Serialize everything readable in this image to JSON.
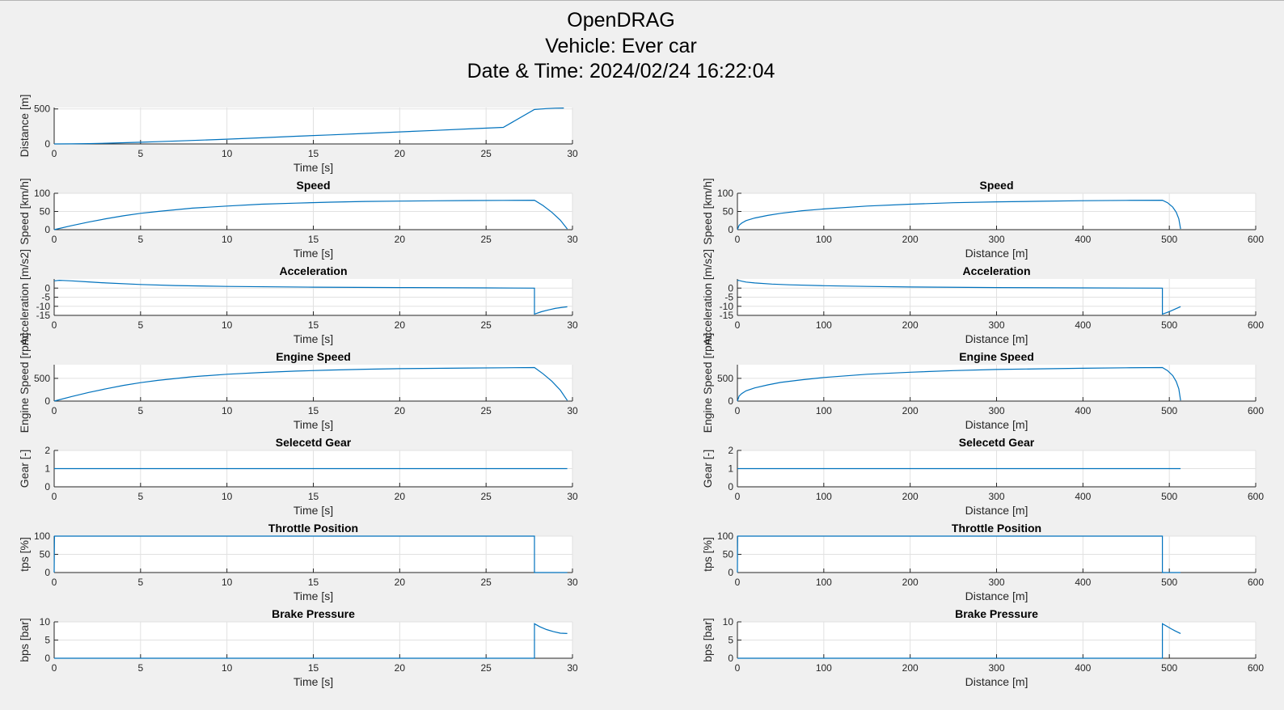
{
  "figure": {
    "title_lines": [
      "OpenDRAG",
      "Vehicle: Ever car",
      "Date & Time: 2024/02/24 16:22:04"
    ]
  },
  "colors": {
    "background": "#f0f0f0",
    "axes_background": "#ffffff",
    "line": "#0072bd",
    "grid": "#e1e1e1",
    "axis": "#262626"
  },
  "chart_data": [
    {
      "id": "distance-time",
      "type": "line",
      "title": "",
      "xlabel": "Time [s]",
      "ylabel": "Distance [m]",
      "xlim": [
        0,
        30
      ],
      "ylim": [
        0,
        520
      ],
      "xticks": [
        0,
        5,
        10,
        15,
        20,
        25,
        30
      ],
      "yticks": [
        0,
        500
      ],
      "grid": true,
      "series": [
        {
          "x": [
            0,
            1,
            2,
            3,
            4,
            5,
            6,
            8,
            10,
            12,
            14,
            16,
            18,
            20,
            22,
            24,
            26,
            27.8,
            28.5,
            29,
            29.5
          ],
          "y": [
            0,
            1.5,
            5,
            10,
            17,
            24,
            32,
            50,
            68,
            88,
            110,
            130,
            150,
            172,
            193,
            215,
            237,
            492,
            505,
            511,
            513
          ]
        }
      ]
    },
    {
      "id": "speed-time",
      "type": "line",
      "title": "Speed",
      "xlabel": "Time [s]",
      "ylabel": "Speed [km/h]",
      "xlim": [
        0,
        30
      ],
      "ylim": [
        0,
        100
      ],
      "xticks": [
        0,
        5,
        10,
        15,
        20,
        25,
        30
      ],
      "yticks": [
        0,
        50,
        100
      ],
      "grid": true,
      "series": [
        {
          "x": [
            0,
            1,
            2,
            3,
            4,
            5,
            6,
            8,
            10,
            12,
            14,
            16,
            18,
            20,
            22,
            24,
            26,
            27.8,
            28.3,
            28.8,
            29.3,
            29.7
          ],
          "y": [
            0,
            11,
            21,
            30,
            38,
            45,
            50,
            59,
            65,
            70,
            73,
            75.5,
            77.5,
            78.5,
            79.3,
            80,
            80.5,
            81,
            66,
            48,
            26,
            2
          ]
        }
      ]
    },
    {
      "id": "speed-distance",
      "type": "line",
      "title": "Speed",
      "xlabel": "Distance [m]",
      "ylabel": "Speed [km/h]",
      "xlim": [
        0,
        600
      ],
      "ylim": [
        0,
        100
      ],
      "xticks": [
        0,
        100,
        200,
        300,
        400,
        500,
        600
      ],
      "yticks": [
        0,
        50,
        100
      ],
      "grid": true,
      "series": [
        {
          "x": [
            0,
            2,
            5,
            10,
            20,
            35,
            50,
            75,
            100,
            150,
            200,
            250,
            300,
            350,
            400,
            450,
            492,
            498,
            504,
            508,
            511,
            513
          ],
          "y": [
            0,
            12,
            18,
            25,
            32,
            39,
            45,
            52,
            57,
            65,
            70,
            74,
            76.5,
            78,
            79.5,
            80.5,
            81,
            74,
            62,
            48,
            30,
            2
          ]
        }
      ]
    },
    {
      "id": "accel-time",
      "type": "line",
      "title": "Acceleration",
      "xlabel": "Time [s]",
      "ylabel": "Acceleration [m/s2]",
      "xlim": [
        0,
        30
      ],
      "ylim": [
        -15,
        5
      ],
      "xticks": [
        0,
        5,
        10,
        15,
        20,
        25,
        30
      ],
      "yticks": [
        -15,
        -10,
        -5,
        0
      ],
      "grid": true,
      "series": [
        {
          "x": [
            0,
            0.3,
            0.5,
            1,
            2,
            3,
            5,
            7,
            10,
            15,
            20,
            25,
            27.8,
            27.8,
            28.2,
            28.6,
            29,
            29.4,
            29.7
          ],
          "y": [
            4,
            4.3,
            4.2,
            4,
            3.4,
            2.8,
            2,
            1.4,
            0.9,
            0.5,
            0.3,
            0.1,
            0,
            -14.3,
            -13,
            -12,
            -11.2,
            -10.6,
            -10.3
          ]
        }
      ]
    },
    {
      "id": "accel-distance",
      "type": "line",
      "title": "Acceleration",
      "xlabel": "Distance [m]",
      "ylabel": "Acceleration [m/s2]",
      "xlim": [
        0,
        600
      ],
      "ylim": [
        -15,
        5
      ],
      "xticks": [
        0,
        100,
        200,
        300,
        400,
        500,
        600
      ],
      "yticks": [
        -15,
        -10,
        -5,
        0
      ],
      "grid": true,
      "series": [
        {
          "x": [
            0,
            1,
            5,
            10,
            20,
            40,
            60,
            100,
            150,
            200,
            300,
            400,
            492,
            492,
            497,
            502,
            507,
            513
          ],
          "y": [
            4,
            4.3,
            3.8,
            3.3,
            2.8,
            2.2,
            1.8,
            1.3,
            0.9,
            0.6,
            0.3,
            0.1,
            0,
            -14.3,
            -13.5,
            -12.5,
            -11.5,
            -10.2
          ]
        }
      ]
    },
    {
      "id": "engine-time",
      "type": "line",
      "title": "Engine Speed",
      "xlabel": "Time [s]",
      "ylabel": "Engine Speed [rpm]",
      "xlim": [
        0,
        30
      ],
      "ylim": [
        0,
        800
      ],
      "xticks": [
        0,
        5,
        10,
        15,
        20,
        25,
        30
      ],
      "yticks": [
        0,
        500
      ],
      "grid": true,
      "series": [
        {
          "x": [
            0,
            1,
            2,
            3,
            4,
            5,
            6,
            8,
            10,
            12,
            14,
            16,
            18,
            20,
            22,
            24,
            26,
            27.8,
            28.3,
            28.8,
            29.3,
            29.7
          ],
          "y": [
            0,
            100,
            190,
            270,
            345,
            405,
            455,
            535,
            590,
            630,
            660,
            683,
            700,
            712,
            720,
            727,
            732,
            737,
            600,
            440,
            240,
            15
          ]
        }
      ]
    },
    {
      "id": "engine-distance",
      "type": "line",
      "title": "Engine Speed",
      "xlabel": "Distance [m]",
      "ylabel": "Engine Speed [rpm]",
      "xlim": [
        0,
        600
      ],
      "ylim": [
        0,
        800
      ],
      "xticks": [
        0,
        100,
        200,
        300,
        400,
        500,
        600
      ],
      "yticks": [
        0,
        500
      ],
      "grid": true,
      "series": [
        {
          "x": [
            0,
            2,
            5,
            10,
            20,
            35,
            50,
            75,
            100,
            150,
            200,
            250,
            300,
            350,
            400,
            450,
            492,
            498,
            504,
            508,
            511,
            513
          ],
          "y": [
            0,
            110,
            165,
            225,
            290,
            355,
            410,
            470,
            520,
            590,
            635,
            670,
            695,
            710,
            722,
            732,
            737,
            670,
            560,
            430,
            270,
            15
          ]
        }
      ]
    },
    {
      "id": "gear-time",
      "type": "line",
      "title": "Selecetd Gear",
      "xlabel": "Time [s]",
      "ylabel": "Gear [-]",
      "xlim": [
        0,
        30
      ],
      "ylim": [
        0,
        2
      ],
      "xticks": [
        0,
        5,
        10,
        15,
        20,
        25,
        30
      ],
      "yticks": [
        0,
        1,
        2
      ],
      "grid": true,
      "series": [
        {
          "x": [
            0,
            29.7
          ],
          "y": [
            1,
            1
          ]
        }
      ]
    },
    {
      "id": "gear-distance",
      "type": "line",
      "title": "Selecetd Gear",
      "xlabel": "Distance [m]",
      "ylabel": "Gear [-]",
      "xlim": [
        0,
        600
      ],
      "ylim": [
        0,
        2
      ],
      "xticks": [
        0,
        100,
        200,
        300,
        400,
        500,
        600
      ],
      "yticks": [
        0,
        1,
        2
      ],
      "grid": true,
      "series": [
        {
          "x": [
            0,
            513
          ],
          "y": [
            1,
            1
          ]
        }
      ]
    },
    {
      "id": "tps-time",
      "type": "line",
      "title": "Throttle Position",
      "xlabel": "Time [s]",
      "ylabel": "tps [%]",
      "xlim": [
        0,
        30
      ],
      "ylim": [
        0,
        100
      ],
      "xticks": [
        0,
        5,
        10,
        15,
        20,
        25,
        30
      ],
      "yticks": [
        0,
        50,
        100
      ],
      "grid": true,
      "series": [
        {
          "x": [
            0,
            0.02,
            27.8,
            27.8,
            29.7
          ],
          "y": [
            0,
            100,
            100,
            0,
            0
          ]
        }
      ]
    },
    {
      "id": "tps-distance",
      "type": "line",
      "title": "Throttle Position",
      "xlabel": "Distance [m]",
      "ylabel": "tps [%]",
      "xlim": [
        0,
        600
      ],
      "ylim": [
        0,
        100
      ],
      "xticks": [
        0,
        100,
        200,
        300,
        400,
        500,
        600
      ],
      "yticks": [
        0,
        50,
        100
      ],
      "grid": true,
      "series": [
        {
          "x": [
            0,
            0.3,
            492,
            492,
            513
          ],
          "y": [
            0,
            100,
            100,
            0,
            0
          ]
        }
      ]
    },
    {
      "id": "bps-time",
      "type": "line",
      "title": "Brake Pressure",
      "xlabel": "Time [s]",
      "ylabel": "bps [bar]",
      "xlim": [
        0,
        30
      ],
      "ylim": [
        0,
        10
      ],
      "xticks": [
        0,
        5,
        10,
        15,
        20,
        25,
        30
      ],
      "yticks": [
        0,
        5,
        10
      ],
      "grid": true,
      "series": [
        {
          "x": [
            0,
            27.8,
            27.8,
            28.1,
            28.5,
            28.9,
            29.3,
            29.7
          ],
          "y": [
            0,
            0,
            9.5,
            8.7,
            7.9,
            7.3,
            6.9,
            6.8
          ]
        }
      ]
    },
    {
      "id": "bps-distance",
      "type": "line",
      "title": "Brake Pressure",
      "xlabel": "Distance [m]",
      "ylabel": "bps [bar]",
      "xlim": [
        0,
        600
      ],
      "ylim": [
        0,
        10
      ],
      "xticks": [
        0,
        100,
        200,
        300,
        400,
        500,
        600
      ],
      "yticks": [
        0,
        5,
        10
      ],
      "grid": true,
      "series": [
        {
          "x": [
            0,
            492,
            492,
            497,
            502,
            507,
            513
          ],
          "y": [
            0,
            0,
            9.5,
            8.8,
            8.1,
            7.5,
            6.8
          ]
        }
      ]
    }
  ]
}
